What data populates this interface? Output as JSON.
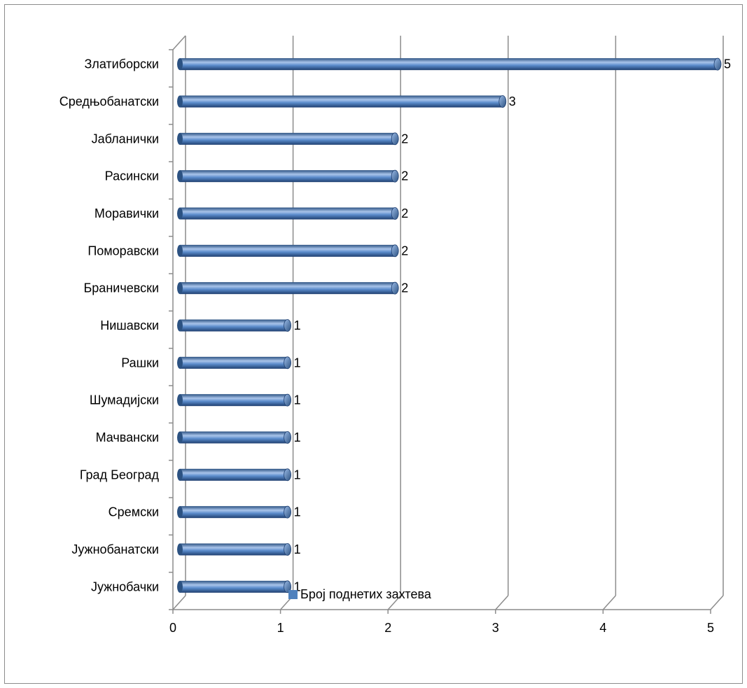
{
  "chart_data": {
    "type": "bar",
    "orientation": "horizontal",
    "style": "3d-cylinder",
    "categories": [
      "Златиборски",
      "Средњобанатски",
      "Јабланички",
      "Расински",
      "Моравички",
      "Поморавски",
      "Браничевски",
      "Нишавски",
      "Рашки",
      "Шумадијски",
      "Мачвански",
      "Град Београд",
      "Сремски",
      "Јужнобанатски",
      "Јужнобачки"
    ],
    "series": [
      {
        "name": "Број поднетих захтева",
        "values": [
          5,
          3,
          2,
          2,
          2,
          2,
          2,
          1,
          1,
          1,
          1,
          1,
          1,
          1,
          1
        ],
        "color": "#4f81bd"
      }
    ],
    "x_ticks": [
      "0",
      "1",
      "2",
      "3",
      "4",
      "5"
    ],
    "xlim": [
      0,
      5
    ],
    "grid": true,
    "data_labels": true,
    "legend_position": "bottom"
  },
  "colors": {
    "bar": "#4f81bd",
    "bar_dark": "#2c5282",
    "bar_light": "#a9c4ea",
    "grid": "#8c8c8c"
  }
}
